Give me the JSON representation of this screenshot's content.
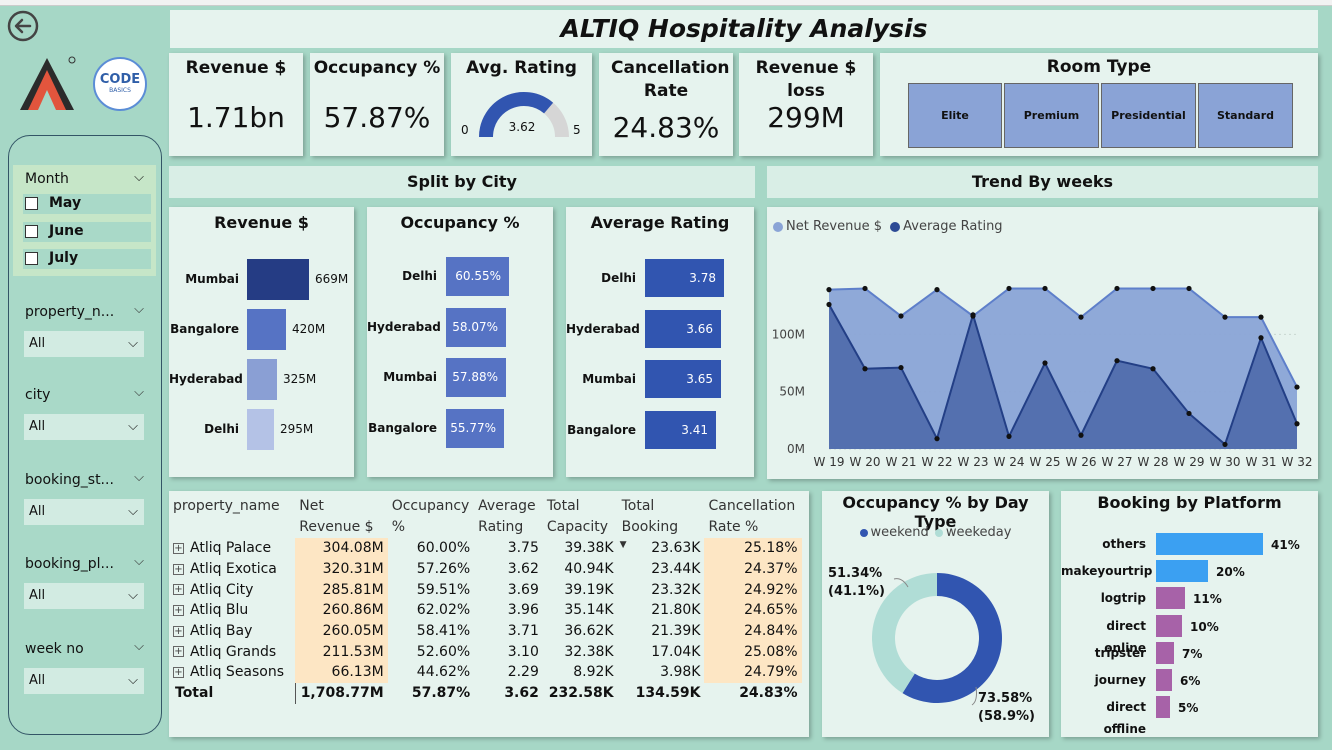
{
  "title": "ALTIQ Hospitality Analysis",
  "kpis": {
    "revenue": {
      "label": "Revenue $",
      "value": "1.71bn"
    },
    "occupancy": {
      "label": "Occupancy %",
      "value": "57.87%"
    },
    "avg_rating": {
      "label": "Avg. Rating",
      "value": "3.62",
      "min": "0",
      "max": "5"
    },
    "cancellation": {
      "label": "Cancellation Rate",
      "value": "24.83%"
    },
    "revenue_loss": {
      "label": "Revenue $ loss",
      "value": "299M"
    }
  },
  "room_type": {
    "title": "Room Type",
    "options": [
      "Elite",
      "Premium",
      "Presidential",
      "Standard"
    ]
  },
  "logo": {
    "code_text": "CODE",
    "basics_text": "BASICS"
  },
  "slicers": {
    "month": {
      "label": "Month",
      "options": [
        "May",
        "June",
        "July"
      ]
    },
    "property_name": {
      "label": "property_n...",
      "value": "All"
    },
    "city": {
      "label": "city",
      "value": "All"
    },
    "booking_status": {
      "label": "booking_st...",
      "value": "All"
    },
    "booking_platform": {
      "label": "booking_pl...",
      "value": "All"
    },
    "week_no": {
      "label": "week no",
      "value": "All"
    }
  },
  "sections": {
    "split_by_city": "Split by City",
    "trend_by_weeks": "Trend By weeks"
  },
  "colors": {
    "bg": "#a6d7c6",
    "card": "#e6f3ee",
    "accent": "#3155b0",
    "teal": "#b0ddd6",
    "highlight": "#fde6c4",
    "platform_blue": "#3ba0f2",
    "platform_purple": "#a762a8"
  },
  "table": {
    "headers": [
      "property_name",
      "Net Revenue $",
      "Occupancy %",
      "Average Rating",
      "Total Capacity",
      "Total Booking",
      "Cancellation Rate %"
    ],
    "rows": [
      [
        "Atliq Palace",
        "304.08M",
        "60.00%",
        "3.75",
        "39.38K",
        "23.63K",
        "25.18%"
      ],
      [
        "Atliq Exotica",
        "320.31M",
        "57.26%",
        "3.62",
        "40.94K",
        "23.44K",
        "24.37%"
      ],
      [
        "Atliq City",
        "285.81M",
        "59.51%",
        "3.69",
        "39.19K",
        "23.32K",
        "24.92%"
      ],
      [
        "Atliq Blu",
        "260.86M",
        "62.02%",
        "3.96",
        "35.14K",
        "21.80K",
        "24.65%"
      ],
      [
        "Atliq Bay",
        "260.05M",
        "58.41%",
        "3.71",
        "36.62K",
        "21.39K",
        "24.84%"
      ],
      [
        "Atliq Grands",
        "211.53M",
        "52.60%",
        "3.10",
        "32.38K",
        "17.04K",
        "25.08%"
      ],
      [
        "Atliq Seasons",
        "66.13M",
        "44.62%",
        "2.29",
        "8.92K",
        "3.98K",
        "24.79%"
      ]
    ],
    "total": [
      "Total",
      "1,708.77M",
      "57.87%",
      "3.62",
      "232.58K",
      "134.59K",
      "24.83%"
    ]
  },
  "chart_data": [
    {
      "type": "bar",
      "orientation": "horizontal",
      "title": "Revenue $",
      "categories": [
        "Mumbai",
        "Bangalore",
        "Hyderabad",
        "Delhi"
      ],
      "values": [
        669,
        420,
        325,
        295
      ],
      "labels": [
        "669M",
        "420M",
        "325M",
        "295M"
      ],
      "colors": [
        "#253c84",
        "#5673c4",
        "#8a9fd4",
        "#b4c2e6"
      ]
    },
    {
      "type": "bar",
      "orientation": "horizontal",
      "title": "Occupancy %",
      "categories": [
        "Delhi",
        "Hyderabad",
        "Mumbai",
        "Bangalore"
      ],
      "values": [
        60.55,
        58.07,
        57.88,
        55.77
      ],
      "labels": [
        "60.55%",
        "58.07%",
        "57.88%",
        "55.77%"
      ],
      "colors": [
        "#5673c4",
        "#5673c4",
        "#5673c4",
        "#5673c4"
      ]
    },
    {
      "type": "bar",
      "orientation": "horizontal",
      "title": "Average Rating",
      "categories": [
        "Delhi",
        "Hyderabad",
        "Mumbai",
        "Bangalore"
      ],
      "values": [
        3.78,
        3.66,
        3.65,
        3.41
      ],
      "labels": [
        "3.78",
        "3.66",
        "3.65",
        "3.41"
      ],
      "colors": [
        "#3155b0",
        "#3155b0",
        "#3155b0",
        "#3155b0"
      ]
    },
    {
      "type": "area",
      "title": "Trend By weeks",
      "x": [
        "W 19",
        "W 20",
        "W 21",
        "W 22",
        "W 23",
        "W 24",
        "W 25",
        "W 26",
        "W 27",
        "W 28",
        "W 29",
        "W 30",
        "W 31",
        "W 32"
      ],
      "yticks": [
        "0M",
        "50M",
        "100M"
      ],
      "ylim": [
        0,
        150
      ],
      "series": [
        {
          "name": "Net Revenue $",
          "values": [
            139,
            140,
            116,
            139,
            116,
            140,
            140,
            115,
            140,
            140,
            140,
            115,
            115,
            54
          ],
          "color": "#8aa4d6"
        },
        {
          "name": "Average Rating",
          "values": [
            126,
            70,
            71,
            9,
            117,
            11,
            75,
            12,
            77,
            70,
            31,
            4,
            97,
            22
          ],
          "color": "#4a66a8"
        }
      ]
    },
    {
      "type": "pie",
      "title": "Occupancy % by Day Type",
      "series": [
        {
          "name": "weekend",
          "value": 58.9,
          "label": "73.58%",
          "label2": "(58.9%)",
          "color": "#3155b0"
        },
        {
          "name": "weekeday",
          "value": 41.1,
          "label": "51.34%",
          "label2": "(41.1%)",
          "color": "#b0ddd6"
        }
      ]
    },
    {
      "type": "bar",
      "orientation": "horizontal",
      "title": "Booking by Platform",
      "categories": [
        "others",
        "makeyourtrip",
        "logtrip",
        "direct online",
        "tripster",
        "journey",
        "direct offline"
      ],
      "values": [
        41,
        20,
        11,
        10,
        7,
        6,
        5
      ],
      "labels": [
        "41%",
        "20%",
        "11%",
        "10%",
        "7%",
        "6%",
        "5%"
      ],
      "colors": [
        "#3ba0f2",
        "#3ba0f2",
        "#a762a8",
        "#a762a8",
        "#a762a8",
        "#a762a8",
        "#a762a8"
      ]
    }
  ]
}
